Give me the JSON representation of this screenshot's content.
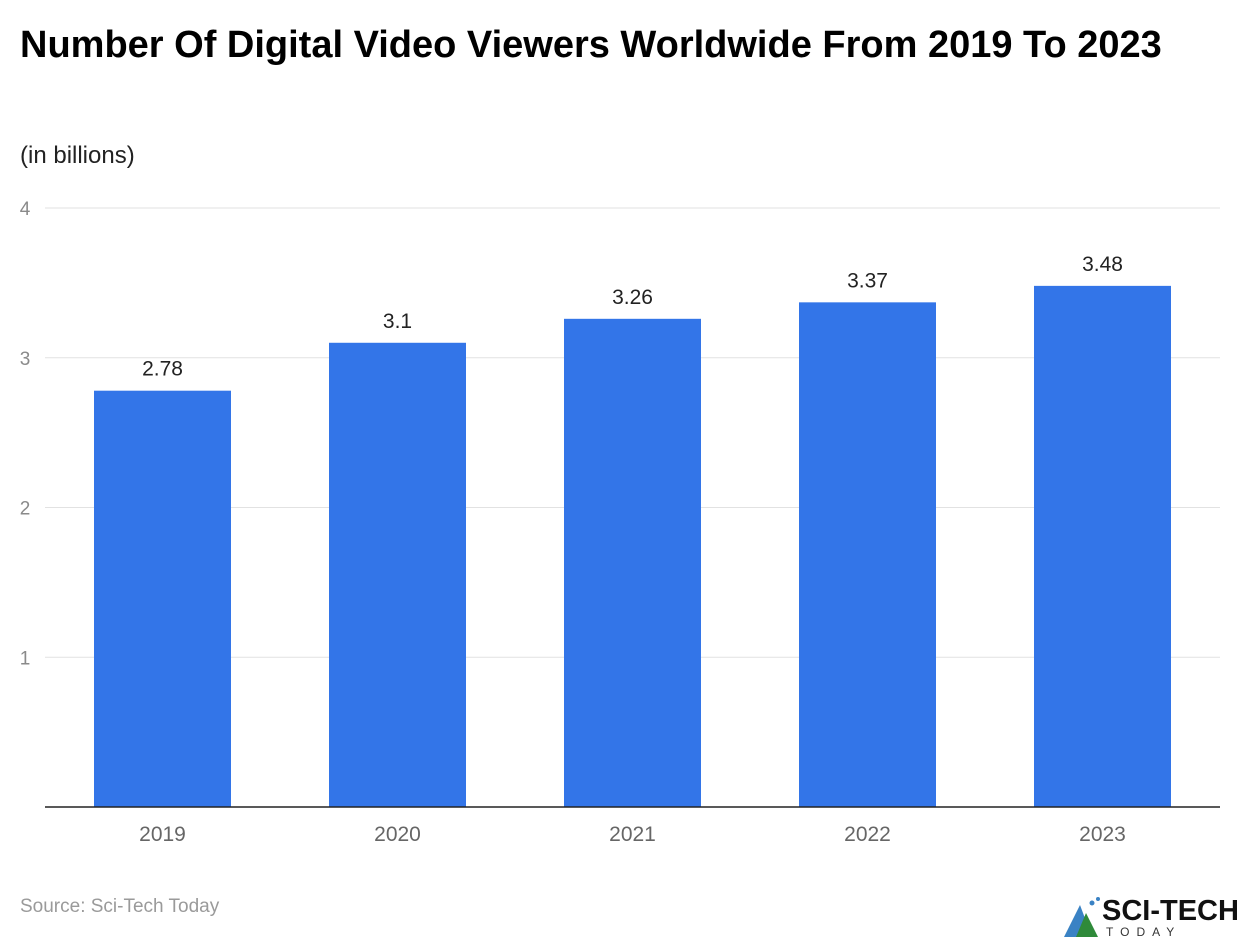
{
  "chart_data": {
    "type": "bar",
    "title": "Number Of Digital Video Viewers Worldwide From 2019 To 2023",
    "subtitle": "(in billions)",
    "categories": [
      "2019",
      "2020",
      "2021",
      "2022",
      "2023"
    ],
    "values": [
      2.78,
      3.1,
      3.26,
      3.37,
      3.48
    ],
    "data_labels": [
      "2.78",
      "3.1",
      "3.26",
      "3.37",
      "3.48"
    ],
    "ylim": [
      0,
      4
    ],
    "yticks": [
      "1",
      "2",
      "3",
      "4"
    ],
    "grid": true,
    "bar_color": "#3375e8"
  },
  "source": "Source: Sci-Tech Today",
  "logo": {
    "name": "SCI-TECH",
    "tagline": "TODAY"
  }
}
